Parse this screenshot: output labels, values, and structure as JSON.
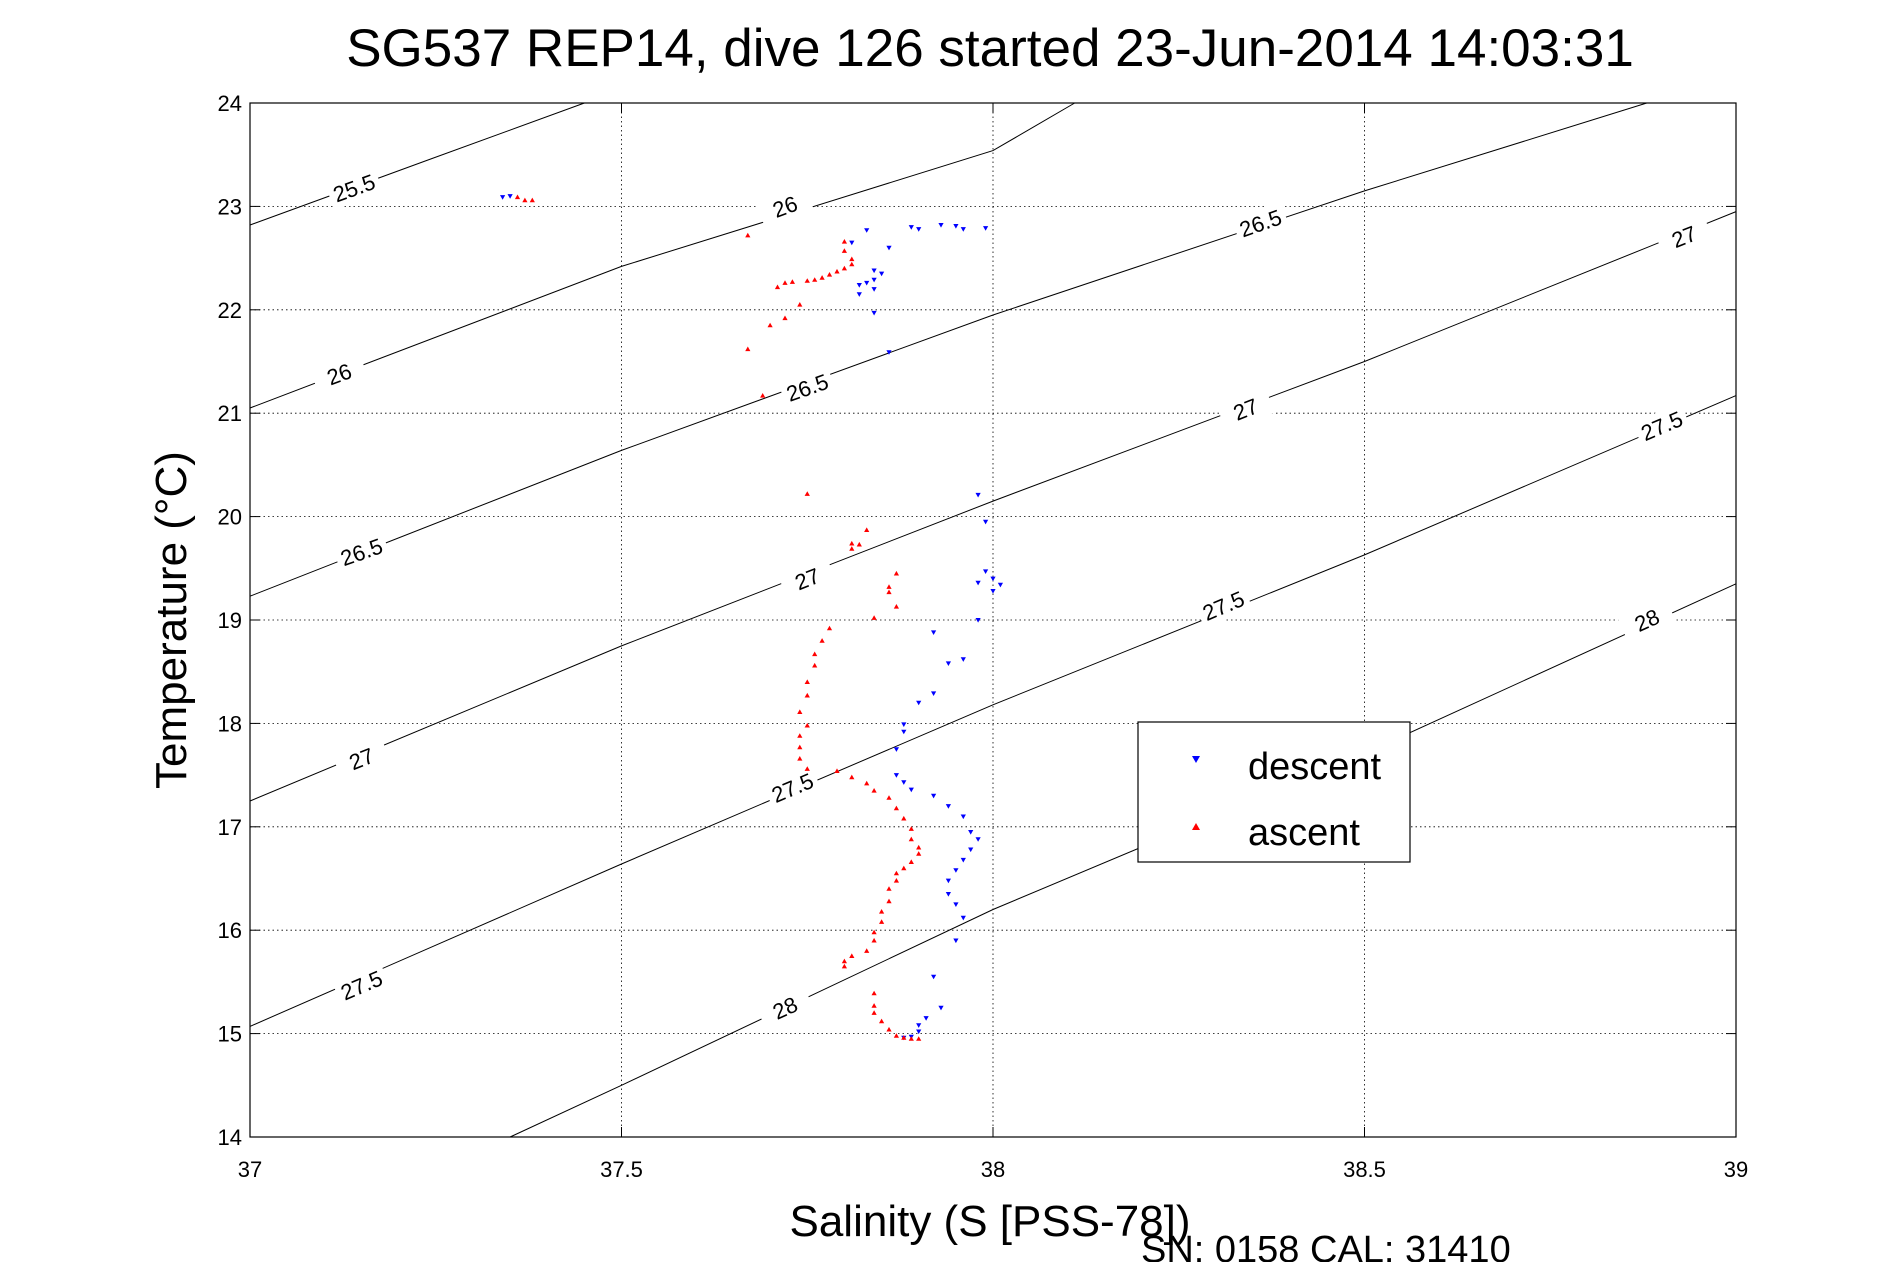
{
  "chart_data": {
    "type": "scatter",
    "title": "SG537 REP14, dive 126 started 23-Jun-2014 14:03:31",
    "xlabel": "Salinity (S [PSS-78])",
    "ylabel": "Temperature (°C)",
    "footer": "SN: 0158  CAL: 31410",
    "xlim": [
      37,
      39
    ],
    "ylim": [
      14,
      24
    ],
    "xticks": [
      37,
      37.5,
      38,
      38.5,
      39
    ],
    "xtick_labels": [
      "37",
      "37.5",
      "38",
      "38.5",
      "39"
    ],
    "yticks": [
      14,
      15,
      16,
      17,
      18,
      19,
      20,
      21,
      22,
      23,
      24
    ],
    "ytick_labels": [
      "14",
      "15",
      "16",
      "17",
      "18",
      "19",
      "20",
      "21",
      "22",
      "23",
      "24"
    ],
    "grid": true,
    "legend_position": "inside-right",
    "series": [
      {
        "name": "descent",
        "marker": "triangle-down",
        "color": "#0000ff",
        "points": [
          [
            37.35,
            23.1
          ],
          [
            37.34,
            23.09
          ],
          [
            37.83,
            22.77
          ],
          [
            37.9,
            22.78
          ],
          [
            37.89,
            22.8
          ],
          [
            37.93,
            22.82
          ],
          [
            37.95,
            22.81
          ],
          [
            37.96,
            22.78
          ],
          [
            37.99,
            22.79
          ],
          [
            37.81,
            22.65
          ],
          [
            37.86,
            22.6
          ],
          [
            37.84,
            22.38
          ],
          [
            37.85,
            22.35
          ],
          [
            37.84,
            22.29
          ],
          [
            37.83,
            22.26
          ],
          [
            37.82,
            22.24
          ],
          [
            37.84,
            22.2
          ],
          [
            37.82,
            22.15
          ],
          [
            37.84,
            21.97
          ],
          [
            37.86,
            21.59
          ],
          [
            37.98,
            20.21
          ],
          [
            37.99,
            19.95
          ],
          [
            37.99,
            19.47
          ],
          [
            37.98,
            19.36
          ],
          [
            38.0,
            19.4
          ],
          [
            38.01,
            19.34
          ],
          [
            38.0,
            19.28
          ],
          [
            37.98,
            19.0
          ],
          [
            37.92,
            18.88
          ],
          [
            37.96,
            18.62
          ],
          [
            37.94,
            18.58
          ],
          [
            37.92,
            18.29
          ],
          [
            37.9,
            18.2
          ],
          [
            37.88,
            17.99
          ],
          [
            37.88,
            17.92
          ],
          [
            37.87,
            17.75
          ],
          [
            37.87,
            17.5
          ],
          [
            37.88,
            17.43
          ],
          [
            37.89,
            17.36
          ],
          [
            37.92,
            17.3
          ],
          [
            37.94,
            17.2
          ],
          [
            37.96,
            17.1
          ],
          [
            37.97,
            16.95
          ],
          [
            37.98,
            16.88
          ],
          [
            37.97,
            16.78
          ],
          [
            37.96,
            16.68
          ],
          [
            37.95,
            16.58
          ],
          [
            37.94,
            16.48
          ],
          [
            37.94,
            16.35
          ],
          [
            37.95,
            16.25
          ],
          [
            37.96,
            16.12
          ],
          [
            37.95,
            15.9
          ],
          [
            37.92,
            15.55
          ],
          [
            37.93,
            15.25
          ],
          [
            37.91,
            15.15
          ],
          [
            37.9,
            15.08
          ],
          [
            37.9,
            15.02
          ],
          [
            37.89,
            14.97
          ],
          [
            37.88,
            14.96
          ]
        ]
      },
      {
        "name": "ascent",
        "marker": "triangle-up",
        "color": "#ff0000",
        "points": [
          [
            37.38,
            23.06
          ],
          [
            37.37,
            23.06
          ],
          [
            37.36,
            23.09
          ],
          [
            37.67,
            22.72
          ],
          [
            37.8,
            22.66
          ],
          [
            37.8,
            22.57
          ],
          [
            37.81,
            22.49
          ],
          [
            37.81,
            22.44
          ],
          [
            37.8,
            22.4
          ],
          [
            37.79,
            22.37
          ],
          [
            37.78,
            22.34
          ],
          [
            37.77,
            22.31
          ],
          [
            37.76,
            22.29
          ],
          [
            37.75,
            22.28
          ],
          [
            37.73,
            22.27
          ],
          [
            37.72,
            22.26
          ],
          [
            37.71,
            22.22
          ],
          [
            37.74,
            22.05
          ],
          [
            37.7,
            21.85
          ],
          [
            37.72,
            21.92
          ],
          [
            37.67,
            21.62
          ],
          [
            37.69,
            21.17
          ],
          [
            37.75,
            20.22
          ],
          [
            37.81,
            19.74
          ],
          [
            37.82,
            19.73
          ],
          [
            37.81,
            19.69
          ],
          [
            37.83,
            19.87
          ],
          [
            37.87,
            19.45
          ],
          [
            37.86,
            19.32
          ],
          [
            37.86,
            19.27
          ],
          [
            37.87,
            19.13
          ],
          [
            37.84,
            19.02
          ],
          [
            37.78,
            18.92
          ],
          [
            37.77,
            18.8
          ],
          [
            37.76,
            18.67
          ],
          [
            37.76,
            18.56
          ],
          [
            37.75,
            18.4
          ],
          [
            37.75,
            18.27
          ],
          [
            37.74,
            18.11
          ],
          [
            37.75,
            17.98
          ],
          [
            37.74,
            17.88
          ],
          [
            37.74,
            17.77
          ],
          [
            37.74,
            17.66
          ],
          [
            37.75,
            17.56
          ],
          [
            37.79,
            17.54
          ],
          [
            37.81,
            17.48
          ],
          [
            37.83,
            17.42
          ],
          [
            37.84,
            17.35
          ],
          [
            37.86,
            17.28
          ],
          [
            37.87,
            17.18
          ],
          [
            37.88,
            17.08
          ],
          [
            37.89,
            16.98
          ],
          [
            37.89,
            16.88
          ],
          [
            37.9,
            16.8
          ],
          [
            37.9,
            16.74
          ],
          [
            37.89,
            16.66
          ],
          [
            37.88,
            16.6
          ],
          [
            37.87,
            16.55
          ],
          [
            37.87,
            16.48
          ],
          [
            37.86,
            16.4
          ],
          [
            37.86,
            16.28
          ],
          [
            37.85,
            16.18
          ],
          [
            37.85,
            16.08
          ],
          [
            37.84,
            15.98
          ],
          [
            37.84,
            15.9
          ],
          [
            37.83,
            15.8
          ],
          [
            37.81,
            15.75
          ],
          [
            37.8,
            15.7
          ],
          [
            37.8,
            15.65
          ],
          [
            37.84,
            15.39
          ],
          [
            37.84,
            15.27
          ],
          [
            37.84,
            15.2
          ],
          [
            37.85,
            15.12
          ],
          [
            37.86,
            15.04
          ],
          [
            37.87,
            14.98
          ],
          [
            37.88,
            14.96
          ],
          [
            37.89,
            14.95
          ],
          [
            37.9,
            14.95
          ]
        ]
      }
    ],
    "contours": [
      {
        "label": "25.5",
        "points": [
          [
            37,
            22.82
          ],
          [
            37.24,
            23.45
          ],
          [
            37.45,
            24
          ]
        ],
        "labels_at": [
          [
            37.14,
            23.18
          ]
        ]
      },
      {
        "label": "26",
        "points": [
          [
            37,
            21.05
          ],
          [
            37.5,
            22.42
          ],
          [
            38.0,
            23.54
          ],
          [
            38.11,
            24
          ]
        ],
        "labels_at": [
          [
            37.12,
            21.38
          ],
          [
            37.72,
            23.0
          ]
        ]
      },
      {
        "label": "26.5",
        "points": [
          [
            37,
            19.23
          ],
          [
            37.5,
            20.64
          ],
          [
            38.0,
            21.95
          ],
          [
            38.5,
            23.15
          ],
          [
            38.88,
            24
          ]
        ],
        "labels_at": [
          [
            37.15,
            19.66
          ],
          [
            37.75,
            21.25
          ],
          [
            38.36,
            22.84
          ]
        ]
      },
      {
        "label": "27",
        "points": [
          [
            37,
            17.25
          ],
          [
            37.5,
            18.75
          ],
          [
            38.0,
            20.15
          ],
          [
            38.5,
            21.5
          ],
          [
            39.0,
            22.95
          ]
        ],
        "labels_at": [
          [
            37.15,
            17.66
          ],
          [
            37.75,
            19.4
          ],
          [
            38.34,
            21.04
          ],
          [
            38.93,
            22.71
          ]
        ]
      },
      {
        "label": "27.5",
        "points": [
          [
            37,
            15.07
          ],
          [
            37.5,
            16.64
          ],
          [
            38.0,
            18.18
          ],
          [
            38.5,
            19.63
          ],
          [
            39.0,
            21.17
          ]
        ],
        "labels_at": [
          [
            37.15,
            15.47
          ],
          [
            37.73,
            17.38
          ],
          [
            38.31,
            19.14
          ],
          [
            38.9,
            20.88
          ]
        ]
      },
      {
        "label": "28",
        "points": [
          [
            37.35,
            14
          ],
          [
            37.5,
            14.5
          ],
          [
            38.0,
            16.2
          ],
          [
            38.5,
            17.71
          ],
          [
            39.0,
            19.35
          ]
        ],
        "labels_at": [
          [
            37.72,
            15.25
          ],
          [
            38.88,
            19.0
          ]
        ]
      }
    ]
  }
}
